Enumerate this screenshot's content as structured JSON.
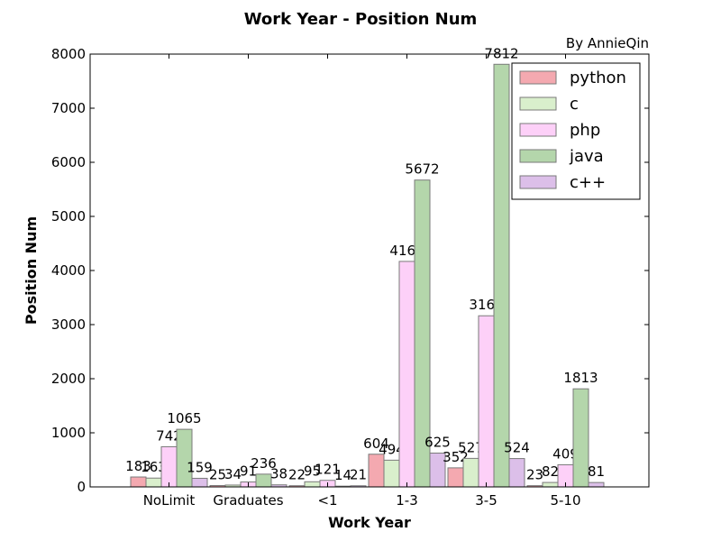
{
  "chart_data": {
    "type": "bar",
    "title": "Work Year - Position Num",
    "annotation": "By AnnieQin",
    "xlabel": "Work Year",
    "ylabel": "Position Num",
    "ylim": [
      0,
      8000
    ],
    "yticks": [
      0,
      1000,
      2000,
      3000,
      4000,
      5000,
      6000,
      7000,
      8000
    ],
    "categories": [
      "NoLimit",
      "Graduates",
      "<1",
      "1-3",
      "3-5",
      "5-10"
    ],
    "series": [
      {
        "name": "python",
        "values": [
          183,
          25,
          22,
          604,
          352,
          23
        ],
        "color": "#f4a9b0"
      },
      {
        "name": "c",
        "values": [
          163,
          34,
          95,
          494,
          527,
          82
        ],
        "color": "#d9efcc"
      },
      {
        "name": "php",
        "values": [
          742,
          91,
          121,
          4168,
          3163,
          409
        ],
        "color": "#fdd0f8"
      },
      {
        "name": "java",
        "values": [
          1065,
          236,
          14,
          5672,
          7812,
          1813
        ],
        "color": "#b4d6ab"
      },
      {
        "name": "c++",
        "values": [
          159,
          38,
          21,
          625,
          524,
          81
        ],
        "color": "#dcbfe9"
      }
    ],
    "legend_position": "top-right",
    "grid": false
  }
}
